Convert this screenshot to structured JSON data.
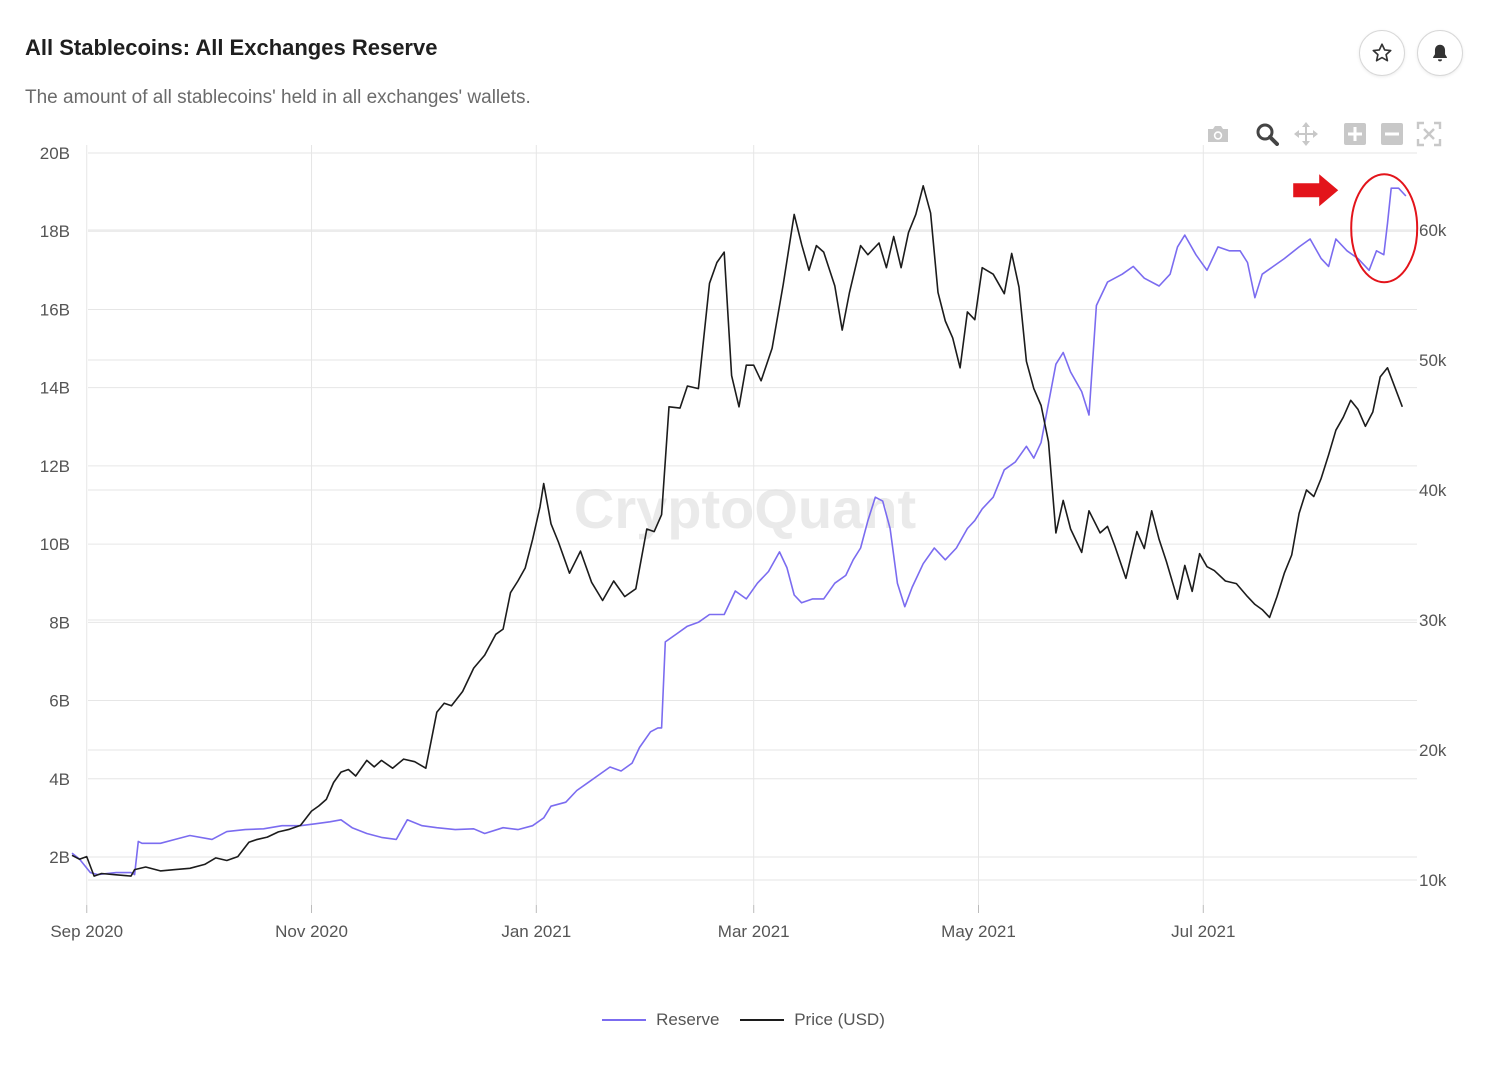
{
  "header": {
    "title": "All Stablecoins: All Exchanges Reserve",
    "subtitle": "The amount of all stablecoins' held in all exchanges' wallets."
  },
  "watermark": "CryptoQuant",
  "colors": {
    "reserve": "#7b6cf0",
    "price": "#1c1c1c",
    "annotation": "#e3141b",
    "grid": "#e6e6e6"
  },
  "toolbar": {
    "icons": [
      "camera-icon",
      "zoom-icon",
      "pan-icon",
      "zoom-in-icon",
      "zoom-out-icon",
      "autoscale-icon"
    ]
  },
  "chart_data": {
    "type": "line",
    "title": "All Stablecoins: All Exchanges Reserve",
    "x_ticks": [
      "Sep 2020",
      "Nov 2020",
      "Jan 2021",
      "Mar 2021",
      "May 2021",
      "Jul 2021"
    ],
    "x_tick_days": [
      0,
      61,
      122,
      181,
      242,
      303
    ],
    "x_range_days": [
      -4,
      361
    ],
    "y_left": {
      "label": "Reserve",
      "ticks": [
        "2B",
        "4B",
        "6B",
        "8B",
        "10B",
        "12B",
        "14B",
        "16B",
        "18B",
        "20B"
      ],
      "tick_values": [
        2,
        4,
        6,
        8,
        10,
        12,
        14,
        16,
        18,
        20
      ],
      "range": [
        1.1,
        20.2
      ]
    },
    "y_right": {
      "label": "Price (USD)",
      "ticks": [
        "10k",
        "20k",
        "30k",
        "40k",
        "50k",
        "60k"
      ],
      "tick_values": [
        10,
        20,
        30,
        40,
        50,
        60
      ],
      "range": [
        10.2,
        66
      ]
    },
    "series": [
      {
        "name": "Reserve",
        "axis": "left",
        "points": [
          [
            -4,
            2.1
          ],
          [
            -2,
            1.95
          ],
          [
            1,
            1.6
          ],
          [
            3,
            1.55
          ],
          [
            8,
            1.6
          ],
          [
            12,
            1.6
          ],
          [
            13,
            1.55
          ],
          [
            14,
            2.4
          ],
          [
            15,
            2.35
          ],
          [
            20,
            2.35
          ],
          [
            24,
            2.45
          ],
          [
            28,
            2.55
          ],
          [
            34,
            2.45
          ],
          [
            38,
            2.65
          ],
          [
            43,
            2.7
          ],
          [
            48,
            2.72
          ],
          [
            53,
            2.8
          ],
          [
            58,
            2.8
          ],
          [
            62,
            2.85
          ],
          [
            66,
            2.9
          ],
          [
            69,
            2.95
          ],
          [
            72,
            2.75
          ],
          [
            76,
            2.6
          ],
          [
            80,
            2.5
          ],
          [
            84,
            2.45
          ],
          [
            87,
            2.95
          ],
          [
            91,
            2.8
          ],
          [
            95,
            2.75
          ],
          [
            100,
            2.7
          ],
          [
            105,
            2.72
          ],
          [
            108,
            2.6
          ],
          [
            113,
            2.75
          ],
          [
            117,
            2.7
          ],
          [
            121,
            2.8
          ],
          [
            124,
            3.0
          ],
          [
            126,
            3.3
          ],
          [
            130,
            3.4
          ],
          [
            133,
            3.7
          ],
          [
            136,
            3.9
          ],
          [
            139,
            4.1
          ],
          [
            142,
            4.3
          ],
          [
            145,
            4.2
          ],
          [
            148,
            4.4
          ],
          [
            150,
            4.8
          ],
          [
            153,
            5.2
          ],
          [
            155,
            5.3
          ],
          [
            156,
            5.3
          ],
          [
            157,
            7.5
          ],
          [
            160,
            7.7
          ],
          [
            163,
            7.9
          ],
          [
            166,
            8.0
          ],
          [
            169,
            8.2
          ],
          [
            173,
            8.2
          ],
          [
            176,
            8.8
          ],
          [
            179,
            8.6
          ],
          [
            182,
            9.0
          ],
          [
            185,
            9.3
          ],
          [
            188,
            9.8
          ],
          [
            190,
            9.4
          ],
          [
            192,
            8.7
          ],
          [
            194,
            8.5
          ],
          [
            197,
            8.6
          ],
          [
            200,
            8.6
          ],
          [
            203,
            9.0
          ],
          [
            206,
            9.2
          ],
          [
            208,
            9.6
          ],
          [
            210,
            9.9
          ],
          [
            212,
            10.6
          ],
          [
            214,
            11.2
          ],
          [
            216,
            11.1
          ],
          [
            218,
            10.4
          ],
          [
            220,
            9.0
          ],
          [
            222,
            8.4
          ],
          [
            224,
            8.9
          ],
          [
            227,
            9.5
          ],
          [
            230,
            9.9
          ],
          [
            233,
            9.6
          ],
          [
            236,
            9.9
          ],
          [
            239,
            10.4
          ],
          [
            241,
            10.6
          ],
          [
            243,
            10.9
          ],
          [
            246,
            11.2
          ],
          [
            249,
            11.9
          ],
          [
            252,
            12.1
          ],
          [
            255,
            12.5
          ],
          [
            257,
            12.2
          ],
          [
            259,
            12.6
          ],
          [
            261,
            13.6
          ],
          [
            263,
            14.6
          ],
          [
            265,
            14.9
          ],
          [
            267,
            14.4
          ],
          [
            270,
            13.9
          ],
          [
            272,
            13.3
          ],
          [
            274,
            16.1
          ],
          [
            277,
            16.7
          ],
          [
            281,
            16.9
          ],
          [
            284,
            17.1
          ],
          [
            287,
            16.8
          ],
          [
            291,
            16.6
          ],
          [
            294,
            16.9
          ],
          [
            296,
            17.6
          ],
          [
            298,
            17.9
          ],
          [
            301,
            17.4
          ],
          [
            304,
            17.0
          ],
          [
            307,
            17.6
          ],
          [
            310,
            17.5
          ],
          [
            313,
            17.5
          ],
          [
            315,
            17.2
          ],
          [
            317,
            16.3
          ],
          [
            319,
            16.9
          ],
          [
            322,
            17.1
          ],
          [
            325,
            17.3
          ],
          [
            329,
            17.6
          ],
          [
            332,
            17.8
          ],
          [
            335,
            17.3
          ],
          [
            337,
            17.1
          ],
          [
            339,
            17.8
          ],
          [
            342,
            17.5
          ],
          [
            345,
            17.3
          ],
          [
            348,
            17.0
          ],
          [
            350,
            17.5
          ],
          [
            352,
            17.4
          ],
          [
            353,
            18.2
          ],
          [
            354,
            19.1
          ],
          [
            356,
            19.1
          ],
          [
            358,
            18.9
          ]
        ]
      },
      {
        "name": "Price (USD)",
        "axis": "right",
        "points": [
          [
            -4,
            11.9
          ],
          [
            -2,
            11.6
          ],
          [
            0,
            11.8
          ],
          [
            2,
            10.3
          ],
          [
            4,
            10.5
          ],
          [
            8,
            10.4
          ],
          [
            12,
            10.3
          ],
          [
            13,
            10.8
          ],
          [
            16,
            11.0
          ],
          [
            20,
            10.7
          ],
          [
            24,
            10.8
          ],
          [
            28,
            10.9
          ],
          [
            32,
            11.2
          ],
          [
            35,
            11.7
          ],
          [
            38,
            11.5
          ],
          [
            41,
            11.8
          ],
          [
            44,
            12.9
          ],
          [
            46,
            13.1
          ],
          [
            49,
            13.3
          ],
          [
            52,
            13.7
          ],
          [
            55,
            13.9
          ],
          [
            58,
            14.2
          ],
          [
            61,
            15.3
          ],
          [
            63,
            15.7
          ],
          [
            65,
            16.2
          ],
          [
            67,
            17.5
          ],
          [
            69,
            18.3
          ],
          [
            71,
            18.5
          ],
          [
            73,
            18.0
          ],
          [
            76,
            19.2
          ],
          [
            78,
            18.7
          ],
          [
            80,
            19.2
          ],
          [
            83,
            18.6
          ],
          [
            86,
            19.3
          ],
          [
            89,
            19.1
          ],
          [
            92,
            18.6
          ],
          [
            95,
            22.9
          ],
          [
            97,
            23.6
          ],
          [
            99,
            23.4
          ],
          [
            102,
            24.5
          ],
          [
            105,
            26.3
          ],
          [
            108,
            27.3
          ],
          [
            111,
            28.9
          ],
          [
            113,
            29.3
          ],
          [
            115,
            32.1
          ],
          [
            117,
            33.0
          ],
          [
            119,
            34.0
          ],
          [
            121,
            36.2
          ],
          [
            123,
            38.7
          ],
          [
            124,
            40.5
          ],
          [
            126,
            37.4
          ],
          [
            128,
            36.0
          ],
          [
            131,
            33.6
          ],
          [
            134,
            35.3
          ],
          [
            137,
            32.9
          ],
          [
            140,
            31.5
          ],
          [
            143,
            33.0
          ],
          [
            146,
            31.8
          ],
          [
            149,
            32.4
          ],
          [
            152,
            37.0
          ],
          [
            154,
            36.8
          ],
          [
            156,
            38.1
          ],
          [
            158,
            46.4
          ],
          [
            161,
            46.3
          ],
          [
            163,
            48.0
          ],
          [
            166,
            47.8
          ],
          [
            169,
            55.9
          ],
          [
            171,
            57.5
          ],
          [
            173,
            58.3
          ],
          [
            175,
            48.8
          ],
          [
            177,
            46.4
          ],
          [
            179,
            49.6
          ],
          [
            181,
            49.6
          ],
          [
            183,
            48.4
          ],
          [
            186,
            50.9
          ],
          [
            189,
            55.8
          ],
          [
            192,
            61.2
          ],
          [
            194,
            58.9
          ],
          [
            196,
            56.9
          ],
          [
            198,
            58.8
          ],
          [
            200,
            58.3
          ],
          [
            203,
            55.7
          ],
          [
            205,
            52.3
          ],
          [
            207,
            55.2
          ],
          [
            210,
            58.8
          ],
          [
            212,
            58.1
          ],
          [
            215,
            59.0
          ],
          [
            217,
            57.1
          ],
          [
            219,
            59.5
          ],
          [
            221,
            57.1
          ],
          [
            223,
            59.8
          ],
          [
            225,
            61.2
          ],
          [
            227,
            63.4
          ],
          [
            229,
            61.3
          ],
          [
            231,
            55.2
          ],
          [
            233,
            53.0
          ],
          [
            235,
            51.7
          ],
          [
            237,
            49.4
          ],
          [
            239,
            53.7
          ],
          [
            241,
            53.1
          ],
          [
            243,
            57.1
          ],
          [
            246,
            56.6
          ],
          [
            249,
            55.1
          ],
          [
            251,
            58.2
          ],
          [
            253,
            55.6
          ],
          [
            255,
            49.9
          ],
          [
            257,
            47.8
          ],
          [
            259,
            46.5
          ],
          [
            261,
            43.7
          ],
          [
            263,
            36.7
          ],
          [
            265,
            39.2
          ],
          [
            267,
            37.0
          ],
          [
            270,
            35.2
          ],
          [
            272,
            38.4
          ],
          [
            275,
            36.7
          ],
          [
            277,
            37.2
          ],
          [
            279,
            35.7
          ],
          [
            282,
            33.2
          ],
          [
            285,
            36.8
          ],
          [
            287,
            35.5
          ],
          [
            289,
            38.4
          ],
          [
            291,
            36.2
          ],
          [
            293,
            34.5
          ],
          [
            296,
            31.6
          ],
          [
            298,
            34.2
          ],
          [
            300,
            32.2
          ],
          [
            302,
            35.1
          ],
          [
            304,
            34.1
          ],
          [
            306,
            33.8
          ],
          [
            309,
            33.0
          ],
          [
            312,
            32.8
          ],
          [
            315,
            31.8
          ],
          [
            317,
            31.2
          ],
          [
            319,
            30.8
          ],
          [
            321,
            30.2
          ],
          [
            323,
            31.8
          ],
          [
            325,
            33.6
          ],
          [
            327,
            35.0
          ],
          [
            329,
            38.2
          ],
          [
            331,
            40.0
          ],
          [
            333,
            39.5
          ],
          [
            335,
            40.9
          ],
          [
            337,
            42.7
          ],
          [
            339,
            44.6
          ],
          [
            341,
            45.6
          ],
          [
            343,
            46.9
          ],
          [
            345,
            46.2
          ],
          [
            347,
            44.9
          ],
          [
            349,
            46.0
          ],
          [
            351,
            48.7
          ],
          [
            353,
            49.4
          ],
          [
            355,
            47.9
          ],
          [
            357,
            46.4
          ]
        ]
      }
    ],
    "annotations": [
      "red arrow pointing to latest reserve value",
      "red ellipse around latest reserve spike"
    ]
  },
  "legend": {
    "items": [
      {
        "label": "Reserve"
      },
      {
        "label": "Price (USD)"
      }
    ]
  }
}
